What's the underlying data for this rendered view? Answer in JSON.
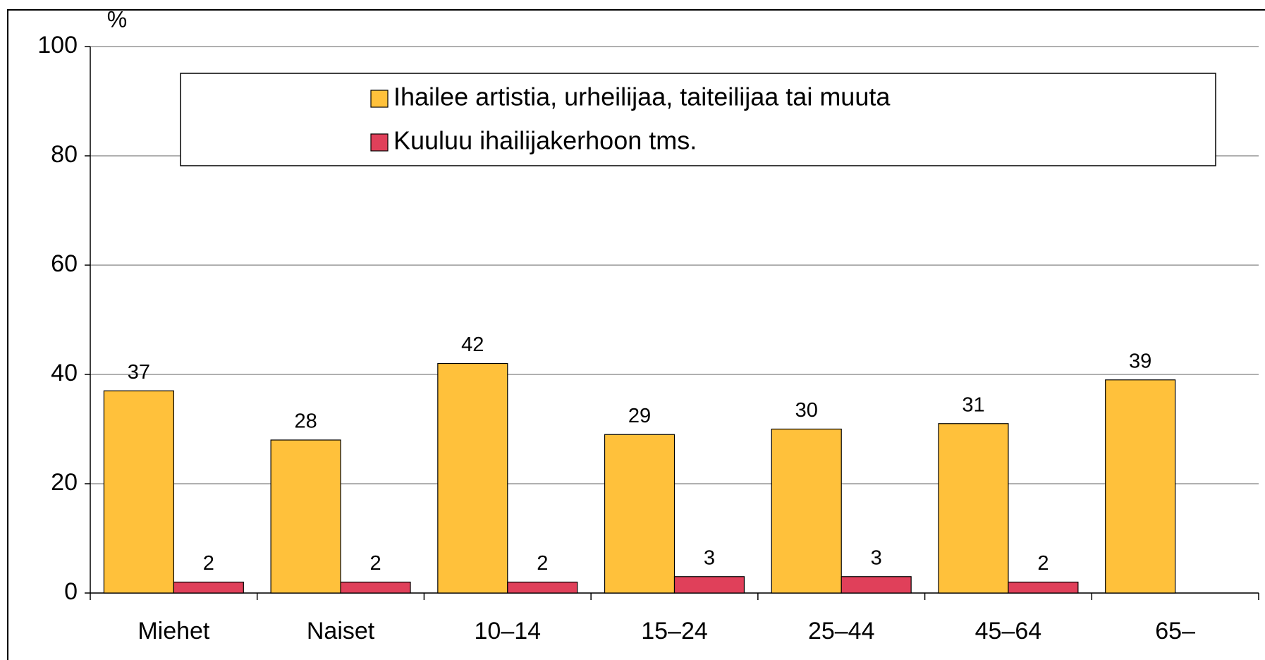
{
  "chart_data": {
    "type": "bar",
    "y_label": "%",
    "categories": [
      "Miehet",
      "Naiset",
      "10–14",
      "15–24",
      "25–44",
      "45–64",
      "65–"
    ],
    "series": [
      {
        "name": "Ihailee artistia, urheilijaa, taiteilijaa tai muuta",
        "color": "#ffc13b",
        "values": [
          37,
          28,
          42,
          29,
          30,
          31,
          39
        ]
      },
      {
        "name": "Kuuluu ihailijakerhoon tms.",
        "color": "#e0405a",
        "values": [
          2,
          2,
          2,
          3,
          3,
          2,
          null
        ]
      }
    ],
    "ylim": [
      0,
      100
    ],
    "yticks": [
      0,
      20,
      40,
      60,
      80,
      100
    ],
    "grid": true,
    "legend": "top"
  }
}
